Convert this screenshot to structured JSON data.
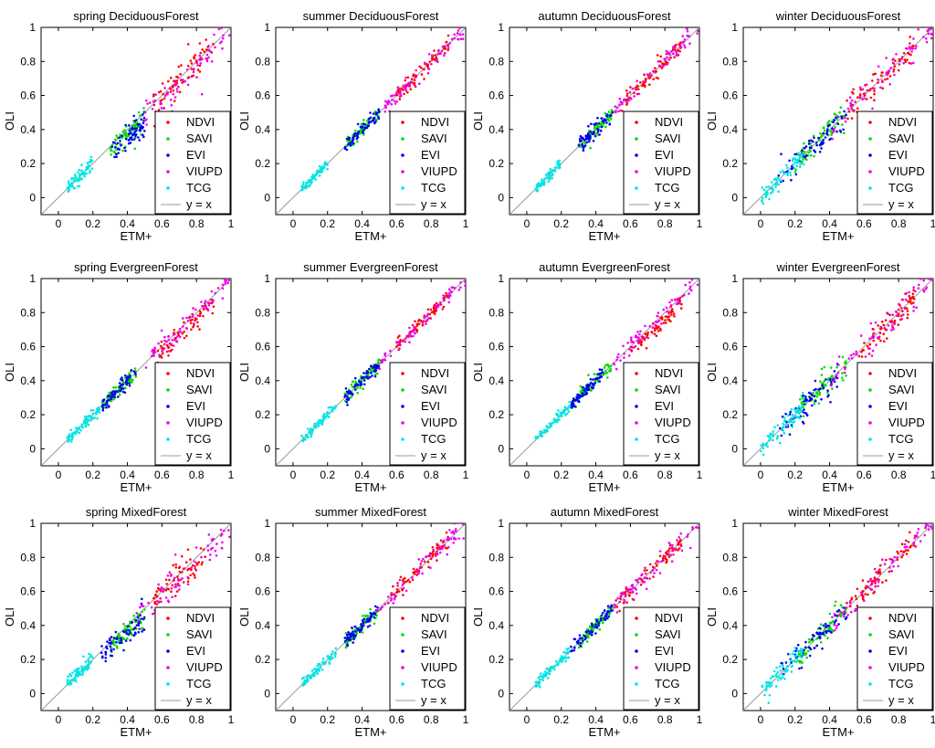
{
  "colors": {
    "NDVI": "#ff0000",
    "SAVI": "#00dd00",
    "EVI": "#0000ee",
    "VIUPD": "#ee00ee",
    "TCG": "#00e5e5",
    "identity": "#999999"
  },
  "legend": {
    "entries": [
      "NDVI",
      "SAVI",
      "EVI",
      "VIUPD",
      "TCG"
    ],
    "identity_label": "y = x",
    "placement": "bottom-right"
  },
  "chart_data": [
    {
      "type": "scatter",
      "title": "spring DeciduousForest",
      "xlabel": "ETM+",
      "ylabel": "OLI",
      "xlim": [
        -0.1,
        1
      ],
      "ylim": [
        -0.1,
        1
      ],
      "xticks": [
        "0",
        "0.2",
        "0.4",
        "0.6",
        "0.8",
        "1"
      ],
      "yticks": [
        "0",
        "0.2",
        "0.4",
        "0.6",
        "0.8",
        "1"
      ],
      "series": [
        {
          "name": "NDVI",
          "x_range": [
            0.55,
            0.9
          ],
          "slope": 1.0,
          "spread": 0.05
        },
        {
          "name": "SAVI",
          "x_range": [
            0.3,
            0.5
          ],
          "slope": 0.9,
          "spread": 0.03
        },
        {
          "name": "EVI",
          "x_range": [
            0.3,
            0.5
          ],
          "slope": 0.85,
          "spread": 0.04
        },
        {
          "name": "VIUPD",
          "x_range": [
            0.5,
            1.0
          ],
          "slope": 0.98,
          "spread": 0.05
        },
        {
          "name": "TCG",
          "x_range": [
            0.05,
            0.2
          ],
          "slope": 1.0,
          "spread": 0.02
        }
      ]
    },
    {
      "type": "scatter",
      "title": "summer DeciduousForest",
      "xlabel": "ETM+",
      "ylabel": "OLI",
      "xlim": [
        -0.1,
        1
      ],
      "ylim": [
        -0.1,
        1
      ],
      "xticks": [
        "0",
        "0.2",
        "0.4",
        "0.6",
        "0.8",
        "1"
      ],
      "yticks": [
        "0",
        "0.2",
        "0.4",
        "0.6",
        "0.8",
        "1"
      ],
      "series": [
        {
          "name": "NDVI",
          "x_range": [
            0.6,
            0.9
          ],
          "slope": 1.0,
          "spread": 0.025
        },
        {
          "name": "SAVI",
          "x_range": [
            0.3,
            0.5
          ],
          "slope": 1.0,
          "spread": 0.02
        },
        {
          "name": "EVI",
          "x_range": [
            0.3,
            0.5
          ],
          "slope": 1.0,
          "spread": 0.02
        },
        {
          "name": "VIUPD",
          "x_range": [
            0.5,
            1.0
          ],
          "slope": 1.0,
          "spread": 0.025
        },
        {
          "name": "TCG",
          "x_range": [
            0.05,
            0.2
          ],
          "slope": 1.0,
          "spread": 0.015
        }
      ]
    },
    {
      "type": "scatter",
      "title": "autumn DeciduousForest",
      "xlabel": "ETM+",
      "ylabel": "OLI",
      "xlim": [
        -0.1,
        1
      ],
      "ylim": [
        -0.1,
        1
      ],
      "xticks": [
        "0",
        "0.2",
        "0.4",
        "0.6",
        "0.8",
        "1"
      ],
      "yticks": [
        "0",
        "0.2",
        "0.4",
        "0.6",
        "0.8",
        "1"
      ],
      "series": [
        {
          "name": "NDVI",
          "x_range": [
            0.55,
            0.9
          ],
          "slope": 1.0,
          "spread": 0.025
        },
        {
          "name": "SAVI",
          "x_range": [
            0.3,
            0.5
          ],
          "slope": 1.0,
          "spread": 0.02
        },
        {
          "name": "EVI",
          "x_range": [
            0.3,
            0.5
          ],
          "slope": 1.0,
          "spread": 0.02
        },
        {
          "name": "VIUPD",
          "x_range": [
            0.5,
            1.0
          ],
          "slope": 1.0,
          "spread": 0.025
        },
        {
          "name": "TCG",
          "x_range": [
            0.05,
            0.2
          ],
          "slope": 1.0,
          "spread": 0.015
        }
      ]
    },
    {
      "type": "scatter",
      "title": "winter DeciduousForest",
      "xlabel": "ETM+",
      "ylabel": "OLI",
      "xlim": [
        -0.1,
        1
      ],
      "ylim": [
        -0.1,
        1
      ],
      "xticks": [
        "0",
        "0.2",
        "0.4",
        "0.6",
        "0.8",
        "1"
      ],
      "yticks": [
        "0",
        "0.2",
        "0.4",
        "0.6",
        "0.8",
        "1"
      ],
      "series": [
        {
          "name": "NDVI",
          "x_range": [
            0.5,
            0.9
          ],
          "slope": 1.0,
          "spread": 0.04
        },
        {
          "name": "SAVI",
          "x_range": [
            0.2,
            0.5
          ],
          "slope": 1.0,
          "spread": 0.04
        },
        {
          "name": "EVI",
          "x_range": [
            0.1,
            0.5
          ],
          "slope": 0.95,
          "spread": 0.04
        },
        {
          "name": "VIUPD",
          "x_range": [
            0.4,
            1.0
          ],
          "slope": 1.0,
          "spread": 0.04
        },
        {
          "name": "TCG",
          "x_range": [
            0.0,
            0.25
          ],
          "slope": 1.0,
          "spread": 0.03
        }
      ]
    },
    {
      "type": "scatter",
      "title": "spring EvergreenForest",
      "xlabel": "ETM+",
      "ylabel": "OLI",
      "xlim": [
        -0.1,
        1
      ],
      "ylim": [
        -0.1,
        1
      ],
      "xticks": [
        "0",
        "0.2",
        "0.4",
        "0.6",
        "0.8",
        "1"
      ],
      "yticks": [
        "0",
        "0.2",
        "0.4",
        "0.6",
        "0.8",
        "1"
      ],
      "series": [
        {
          "name": "NDVI",
          "x_range": [
            0.55,
            0.9
          ],
          "slope": 0.95,
          "spread": 0.03
        },
        {
          "name": "SAVI",
          "x_range": [
            0.25,
            0.45
          ],
          "slope": 1.0,
          "spread": 0.02
        },
        {
          "name": "EVI",
          "x_range": [
            0.25,
            0.45
          ],
          "slope": 1.0,
          "spread": 0.02
        },
        {
          "name": "VIUPD",
          "x_range": [
            0.5,
            1.0
          ],
          "slope": 1.0,
          "spread": 0.03
        },
        {
          "name": "TCG",
          "x_range": [
            0.05,
            0.25
          ],
          "slope": 1.0,
          "spread": 0.015
        }
      ]
    },
    {
      "type": "scatter",
      "title": "summer EvergreenForest",
      "xlabel": "ETM+",
      "ylabel": "OLI",
      "xlim": [
        -0.1,
        1
      ],
      "ylim": [
        -0.1,
        1
      ],
      "xticks": [
        "0",
        "0.2",
        "0.4",
        "0.6",
        "0.8",
        "1"
      ],
      "yticks": [
        "0",
        "0.2",
        "0.4",
        "0.6",
        "0.8",
        "1"
      ],
      "series": [
        {
          "name": "NDVI",
          "x_range": [
            0.6,
            0.9
          ],
          "slope": 1.0,
          "spread": 0.02
        },
        {
          "name": "SAVI",
          "x_range": [
            0.3,
            0.5
          ],
          "slope": 1.0,
          "spread": 0.02
        },
        {
          "name": "EVI",
          "x_range": [
            0.3,
            0.5
          ],
          "slope": 1.0,
          "spread": 0.02
        },
        {
          "name": "VIUPD",
          "x_range": [
            0.5,
            1.0
          ],
          "slope": 1.0,
          "spread": 0.02
        },
        {
          "name": "TCG",
          "x_range": [
            0.05,
            0.25
          ],
          "slope": 1.0,
          "spread": 0.015
        }
      ]
    },
    {
      "type": "scatter",
      "title": "autumn EvergreenForest",
      "xlabel": "ETM+",
      "ylabel": "OLI",
      "xlim": [
        -0.1,
        1
      ],
      "ylim": [
        -0.1,
        1
      ],
      "xticks": [
        "0",
        "0.2",
        "0.4",
        "0.6",
        "0.8",
        "1"
      ],
      "yticks": [
        "0",
        "0.2",
        "0.4",
        "0.6",
        "0.8",
        "1"
      ],
      "series": [
        {
          "name": "NDVI",
          "x_range": [
            0.6,
            0.9
          ],
          "slope": 0.95,
          "spread": 0.025
        },
        {
          "name": "SAVI",
          "x_range": [
            0.25,
            0.5
          ],
          "slope": 1.0,
          "spread": 0.02
        },
        {
          "name": "EVI",
          "x_range": [
            0.25,
            0.45
          ],
          "slope": 1.0,
          "spread": 0.02
        },
        {
          "name": "VIUPD",
          "x_range": [
            0.5,
            1.0
          ],
          "slope": 1.0,
          "spread": 0.025
        },
        {
          "name": "TCG",
          "x_range": [
            0.05,
            0.25
          ],
          "slope": 1.0,
          "spread": 0.015
        }
      ]
    },
    {
      "type": "scatter",
      "title": "winter EvergreenForest",
      "xlabel": "ETM+",
      "ylabel": "OLI",
      "xlim": [
        -0.1,
        1
      ],
      "ylim": [
        -0.1,
        1
      ],
      "xticks": [
        "0",
        "0.2",
        "0.4",
        "0.6",
        "0.8",
        "1"
      ],
      "yticks": [
        "0",
        "0.2",
        "0.4",
        "0.6",
        "0.8",
        "1"
      ],
      "series": [
        {
          "name": "NDVI",
          "x_range": [
            0.55,
            0.9
          ],
          "slope": 1.0,
          "spread": 0.04
        },
        {
          "name": "SAVI",
          "x_range": [
            0.2,
            0.5
          ],
          "slope": 1.0,
          "spread": 0.04
        },
        {
          "name": "EVI",
          "x_range": [
            0.1,
            0.45
          ],
          "slope": 0.95,
          "spread": 0.04
        },
        {
          "name": "VIUPD",
          "x_range": [
            0.4,
            1.0
          ],
          "slope": 1.0,
          "spread": 0.04
        },
        {
          "name": "TCG",
          "x_range": [
            0.0,
            0.25
          ],
          "slope": 1.0,
          "spread": 0.03
        }
      ]
    },
    {
      "type": "scatter",
      "title": "spring MixedForest",
      "xlabel": "ETM+",
      "ylabel": "OLI",
      "xlim": [
        -0.1,
        1
      ],
      "ylim": [
        -0.1,
        1
      ],
      "xticks": [
        "0",
        "0.2",
        "0.4",
        "0.6",
        "0.8",
        "1"
      ],
      "yticks": [
        "0",
        "0.2",
        "0.4",
        "0.6",
        "0.8",
        "1"
      ],
      "series": [
        {
          "name": "NDVI",
          "x_range": [
            0.55,
            0.85
          ],
          "slope": 0.97,
          "spread": 0.05
        },
        {
          "name": "SAVI",
          "x_range": [
            0.3,
            0.5
          ],
          "slope": 0.9,
          "spread": 0.03
        },
        {
          "name": "EVI",
          "x_range": [
            0.25,
            0.5
          ],
          "slope": 0.85,
          "spread": 0.04
        },
        {
          "name": "VIUPD",
          "x_range": [
            0.45,
            1.0
          ],
          "slope": 0.97,
          "spread": 0.05
        },
        {
          "name": "TCG",
          "x_range": [
            0.05,
            0.2
          ],
          "slope": 1.0,
          "spread": 0.02
        }
      ]
    },
    {
      "type": "scatter",
      "title": "summer MixedForest",
      "xlabel": "ETM+",
      "ylabel": "OLI",
      "xlim": [
        -0.1,
        1
      ],
      "ylim": [
        -0.1,
        1
      ],
      "xticks": [
        "0",
        "0.2",
        "0.4",
        "0.6",
        "0.8",
        "1"
      ],
      "yticks": [
        "0",
        "0.2",
        "0.4",
        "0.6",
        "0.8",
        "1"
      ],
      "series": [
        {
          "name": "NDVI",
          "x_range": [
            0.55,
            0.9
          ],
          "slope": 1.0,
          "spread": 0.03
        },
        {
          "name": "SAVI",
          "x_range": [
            0.3,
            0.5
          ],
          "slope": 1.0,
          "spread": 0.02
        },
        {
          "name": "EVI",
          "x_range": [
            0.3,
            0.5
          ],
          "slope": 1.0,
          "spread": 0.02
        },
        {
          "name": "VIUPD",
          "x_range": [
            0.45,
            1.0
          ],
          "slope": 1.0,
          "spread": 0.03
        },
        {
          "name": "TCG",
          "x_range": [
            0.05,
            0.25
          ],
          "slope": 1.0,
          "spread": 0.015
        }
      ]
    },
    {
      "type": "scatter",
      "title": "autumn MixedForest",
      "xlabel": "ETM+",
      "ylabel": "OLI",
      "xlim": [
        -0.1,
        1
      ],
      "ylim": [
        -0.1,
        1
      ],
      "xticks": [
        "0",
        "0.2",
        "0.4",
        "0.6",
        "0.8",
        "1"
      ],
      "yticks": [
        "0",
        "0.2",
        "0.4",
        "0.6",
        "0.8",
        "1"
      ],
      "series": [
        {
          "name": "NDVI",
          "x_range": [
            0.5,
            0.9
          ],
          "slope": 1.0,
          "spread": 0.025
        },
        {
          "name": "SAVI",
          "x_range": [
            0.3,
            0.5
          ],
          "slope": 1.0,
          "spread": 0.02
        },
        {
          "name": "EVI",
          "x_range": [
            0.25,
            0.5
          ],
          "slope": 1.0,
          "spread": 0.02
        },
        {
          "name": "VIUPD",
          "x_range": [
            0.5,
            1.0
          ],
          "slope": 1.0,
          "spread": 0.03
        },
        {
          "name": "TCG",
          "x_range": [
            0.05,
            0.25
          ],
          "slope": 1.0,
          "spread": 0.015
        }
      ]
    },
    {
      "type": "scatter",
      "title": "winter MixedForest",
      "xlabel": "ETM+",
      "ylabel": "OLI",
      "xlim": [
        -0.1,
        1
      ],
      "ylim": [
        -0.1,
        1
      ],
      "xticks": [
        "0",
        "0.2",
        "0.4",
        "0.6",
        "0.8",
        "1"
      ],
      "yticks": [
        "0",
        "0.2",
        "0.4",
        "0.6",
        "0.8",
        "1"
      ],
      "series": [
        {
          "name": "NDVI",
          "x_range": [
            0.5,
            0.9
          ],
          "slope": 1.0,
          "spread": 0.035
        },
        {
          "name": "SAVI",
          "x_range": [
            0.2,
            0.5
          ],
          "slope": 1.0,
          "spread": 0.035
        },
        {
          "name": "EVI",
          "x_range": [
            0.1,
            0.5
          ],
          "slope": 0.95,
          "spread": 0.035
        },
        {
          "name": "VIUPD",
          "x_range": [
            0.4,
            1.0
          ],
          "slope": 1.0,
          "spread": 0.035
        },
        {
          "name": "TCG",
          "x_range": [
            0.0,
            0.25
          ],
          "slope": 1.0,
          "spread": 0.03
        }
      ]
    }
  ]
}
